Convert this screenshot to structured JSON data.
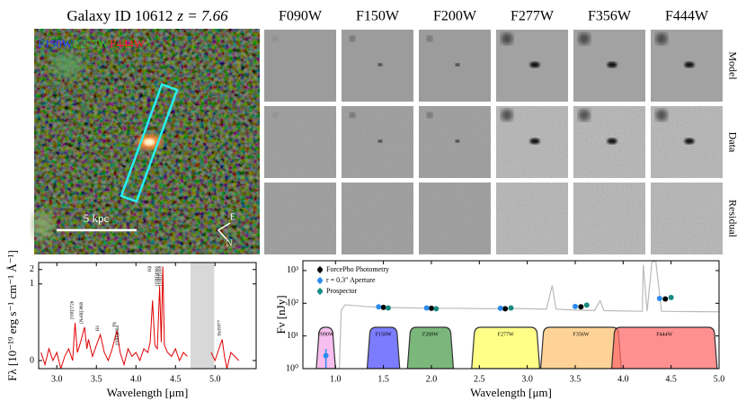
{
  "cutout": {
    "title": "Galaxy ID 10612",
    "redshift": "z = 7.66",
    "filters": [
      {
        "name": "F150W",
        "color": "#2040ff"
      },
      {
        "name": "F277W",
        "color": "#30c030"
      },
      {
        "name": "F444W",
        "color": "#ff2020"
      }
    ],
    "scale_bar": "5 kpc",
    "compass": [
      "E",
      "N"
    ]
  },
  "grid": {
    "columns": [
      "F090W",
      "F150W",
      "F200W",
      "F277W",
      "F356W",
      "F444W"
    ],
    "rows": [
      "Model",
      "Data",
      "Residual"
    ]
  },
  "chart_data": [
    {
      "type": "line",
      "yscale": "asinh",
      "x_label": "Wavelength [μm]",
      "y_label": "Fλ [10⁻¹⁹ erg s⁻¹ cm⁻¹ Å⁻¹]",
      "xlim": [
        2.77,
        5.52
      ],
      "ylim": [
        -0.02,
        2.8
      ],
      "xticks": [
        {
          "value": 3,
          "label": "3.0"
        },
        {
          "value": 3.5,
          "label": "3.5"
        },
        {
          "value": 4,
          "label": "4.0"
        },
        {
          "value": 4.5,
          "label": "4.5"
        },
        {
          "value": 5,
          "label": "5.0"
        }
      ],
      "yticks": [
        0,
        1,
        2
      ],
      "shaded_region": [
        4.69,
        4.99
      ],
      "x": [
        2.8,
        2.85,
        2.9,
        2.95,
        3.0,
        3.05,
        3.1,
        3.15,
        3.2,
        3.23,
        3.26,
        3.3,
        3.35,
        3.38,
        3.4,
        3.45,
        3.5,
        3.55,
        3.6,
        3.65,
        3.7,
        3.76,
        3.8,
        3.85,
        3.9,
        3.95,
        4.0,
        4.05,
        4.1,
        4.15,
        4.18,
        4.21,
        4.24,
        4.27,
        4.3,
        4.32,
        4.34,
        4.36,
        4.4,
        4.45,
        4.5,
        4.55,
        4.6,
        4.65,
        4.8,
        4.95,
        5.0,
        5.05,
        5.09,
        5.12,
        5.15,
        5.2,
        5.25,
        5.3
      ],
      "series": [
        {
          "color": "#e00000",
          "values": [
            0.02,
            -0.01,
            0.03,
            0.0,
            0.02,
            -0.02,
            0.01,
            0.03,
            0.0,
            0.15,
            0.02,
            0.05,
            0.12,
            0.03,
            0.06,
            0.01,
            0.04,
            0.08,
            0.02,
            0.0,
            0.03,
            0.1,
            0.02,
            -0.01,
            0.03,
            0.01,
            0.02,
            0.0,
            0.03,
            0.02,
            0.05,
            0.45,
            0.04,
            0.03,
            0.9,
            0.05,
            2.3,
            0.04,
            0.02,
            0.01,
            0.03,
            0.0,
            0.02,
            0.01,
            null,
            0.02,
            0.0,
            0.03,
            0.06,
            0.01,
            -0.02,
            0.02,
            0.01,
            0.0
          ]
        }
      ],
      "annotations": [
        {
          "label": "[OII]3726",
          "x": 3.23
        },
        {
          "label": "[NeIII]3869",
          "x": 3.35
        },
        {
          "label": "Hδ",
          "x": 3.55
        },
        {
          "label": "Hγ",
          "x": 3.76
        },
        {
          "label": "[OIII]4364",
          "x": 3.8
        },
        {
          "label": "Hβ",
          "x": 4.21
        },
        {
          "label": "[OIII]4960",
          "x": 4.3
        },
        {
          "label": "[OIII]5008",
          "x": 4.34
        },
        {
          "label": "HeI5877",
          "x": 5.09
        }
      ]
    },
    {
      "type": "line",
      "yscale": "log",
      "x_label": "Wavelength [μm]",
      "y_label": "Fν [nJy]",
      "xlim": [
        0.66,
        5.0
      ],
      "ylim": [
        1,
        2000
      ],
      "xticks": [
        {
          "value": 1,
          "label": "1.0"
        },
        {
          "value": 1.5,
          "label": "1.5"
        },
        {
          "value": 2,
          "label": "2.0"
        },
        {
          "value": 2.5,
          "label": "2.5"
        },
        {
          "value": 3,
          "label": "3.0"
        },
        {
          "value": 3.5,
          "label": "3.5"
        },
        {
          "value": 4,
          "label": "4.0"
        },
        {
          "value": 4.5,
          "label": "4.5"
        },
        {
          "value": 5,
          "label": "5.0"
        }
      ],
      "yticks": [
        {
          "value": 1,
          "label": "10⁰"
        },
        {
          "value": 10,
          "label": "10¹"
        },
        {
          "value": 100,
          "label": "10²"
        },
        {
          "value": 1000,
          "label": "10³"
        }
      ],
      "filters": [
        {
          "name": "F090W",
          "range": [
            0.8,
            1.0
          ],
          "color": "#f5a8ea"
        },
        {
          "name": "F150W",
          "range": [
            1.33,
            1.67
          ],
          "color": "#5050ff"
        },
        {
          "name": "F200W",
          "range": [
            1.75,
            2.23
          ],
          "color": "#4f9f4f"
        },
        {
          "name": "F277W",
          "range": [
            2.42,
            3.13
          ],
          "color": "#ffff60"
        },
        {
          "name": "F356W",
          "range": [
            3.14,
            3.98
          ],
          "color": "#ffc474"
        },
        {
          "name": "F444W",
          "range": [
            3.88,
            4.98
          ],
          "color": "#ff6b6b"
        }
      ],
      "x": [
        0.66,
        0.9,
        1.0,
        1.04,
        1.06,
        1.1,
        1.3,
        1.5,
        1.8,
        2.0,
        2.3,
        2.6,
        2.8,
        3.0,
        3.2,
        3.26,
        3.3,
        3.4,
        3.5,
        3.7,
        3.76,
        3.8,
        4.0,
        4.2,
        4.21,
        4.25,
        4.3,
        4.34,
        4.4,
        4.6,
        5.0
      ],
      "series": [
        {
          "color": "#bbbbbb",
          "values": [
            1,
            1,
            1,
            1,
            60,
            90,
            80,
            75,
            72,
            70,
            70,
            68,
            70,
            68,
            66,
            350,
            66,
            64,
            62,
            60,
            120,
            60,
            58,
            57,
            1500,
            57,
            1800,
            2000,
            57,
            56,
            55
          ]
        }
      ],
      "photometry": [
        {
          "name": "ForcePho Photometry",
          "color": "#000000",
          "x": [
            1.5,
            2.0,
            2.77,
            3.56,
            4.44
          ],
          "values": [
            75,
            70,
            68,
            78,
            135
          ]
        },
        {
          "name": "r = 0.3″ Aperture",
          "color": "#2b8cf0",
          "x": [
            0.9,
            1.45,
            1.95,
            2.72,
            3.5,
            4.38
          ],
          "values": [
            2.5,
            78,
            72,
            70,
            80,
            140
          ],
          "errors": [
            1.5,
            8,
            6,
            6,
            8,
            12
          ]
        },
        {
          "name": "Prospector",
          "color": "#178a80",
          "x": [
            1.55,
            2.05,
            2.83,
            3.62,
            4.5
          ],
          "values": [
            72,
            68,
            72,
            88,
            150
          ]
        }
      ]
    }
  ]
}
